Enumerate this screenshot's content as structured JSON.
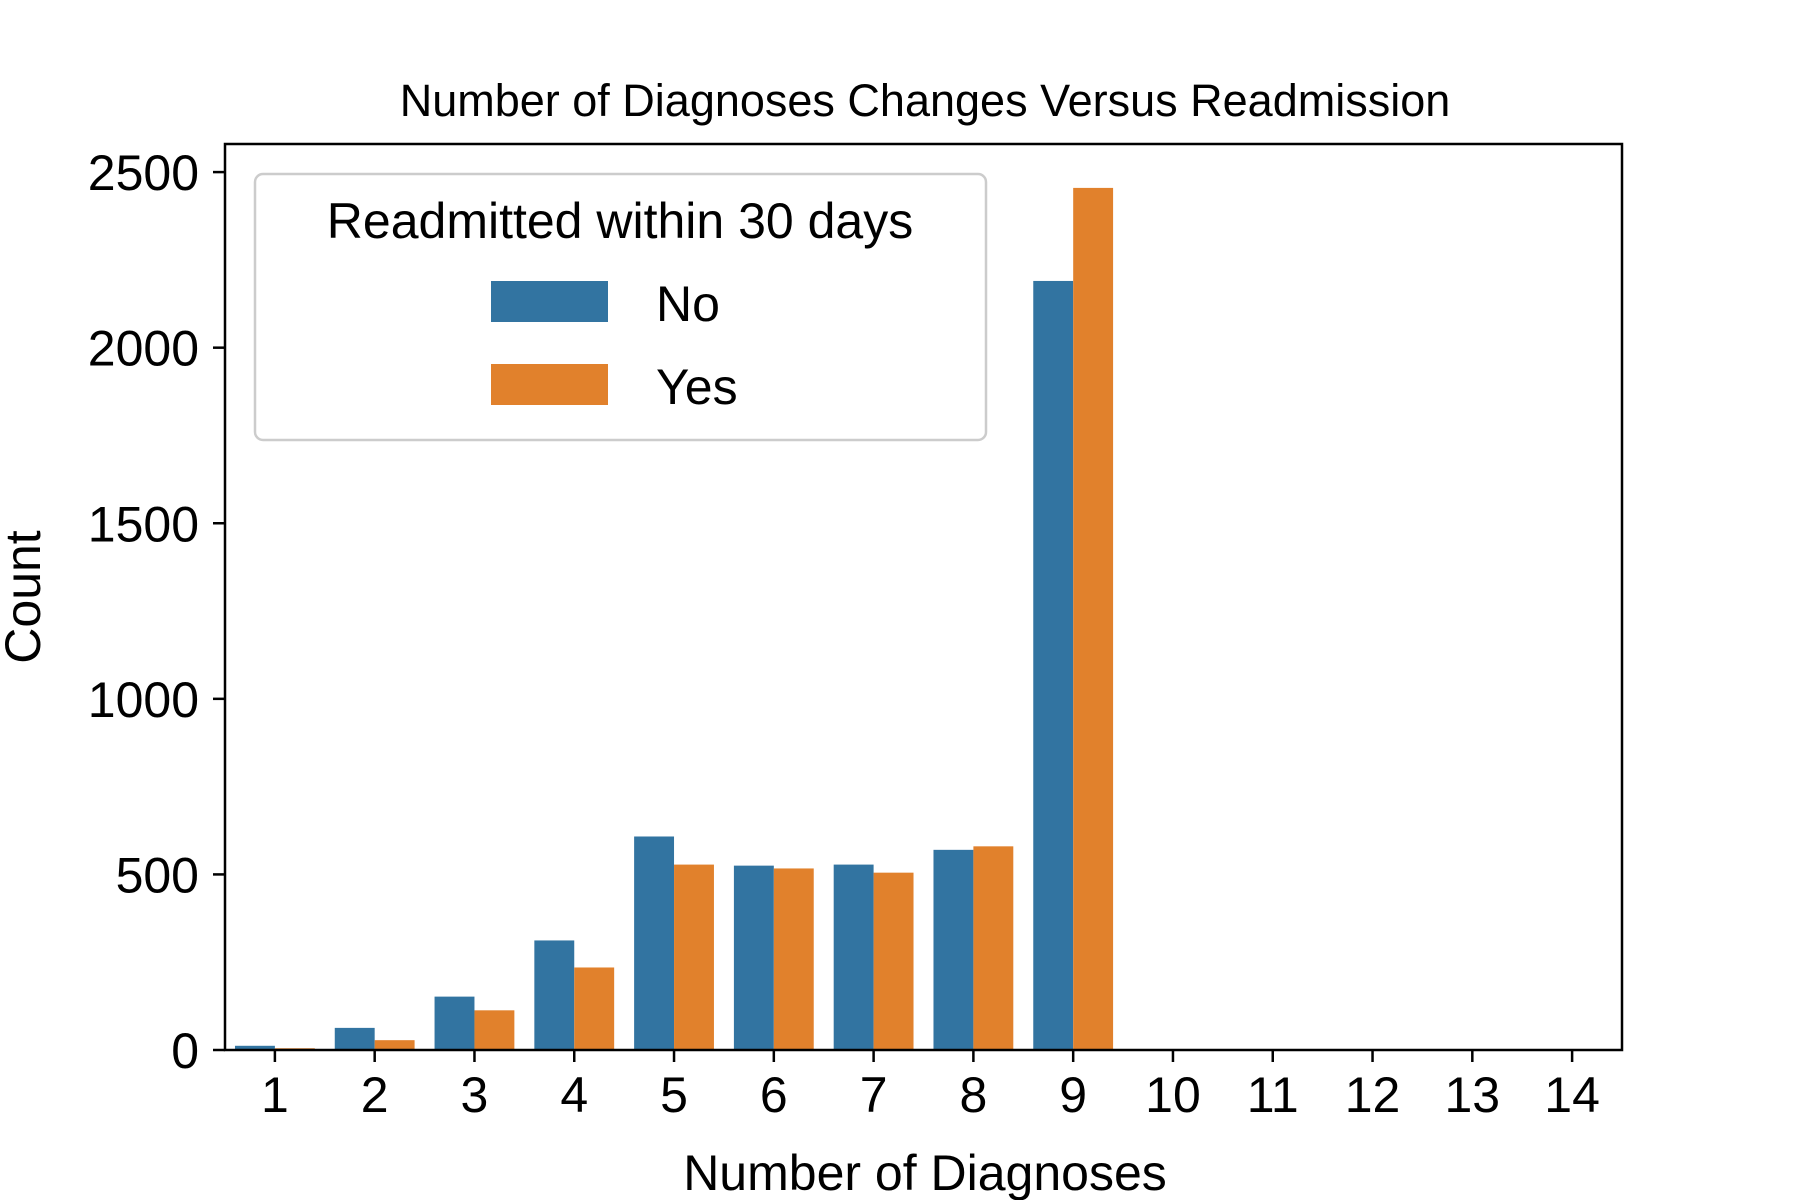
{
  "chart_data": {
    "type": "bar",
    "title": "Number of Diagnoses Changes Versus Readmission",
    "xlabel": "Number of Diagnoses",
    "ylabel": "Count",
    "categories": [
      "1",
      "2",
      "3",
      "4",
      "5",
      "6",
      "7",
      "8",
      "9",
      "10",
      "11",
      "12",
      "13",
      "14"
    ],
    "series": [
      {
        "name": "No",
        "color": "#3274a1",
        "values": [
          12,
          63,
          152,
          312,
          608,
          525,
          528,
          570,
          2190,
          0,
          0,
          0,
          0,
          0
        ]
      },
      {
        "name": "Yes",
        "color": "#e1812c",
        "values": [
          5,
          28,
          113,
          235,
          528,
          517,
          505,
          580,
          2455,
          0,
          0,
          0,
          0,
          0
        ]
      }
    ],
    "ylim": [
      0,
      2580
    ],
    "yticks": [
      0,
      500,
      1000,
      1500,
      2000,
      2500
    ],
    "legend": {
      "title": "Readmitted within 30 days",
      "placement": "top-left"
    },
    "grid": false
  }
}
